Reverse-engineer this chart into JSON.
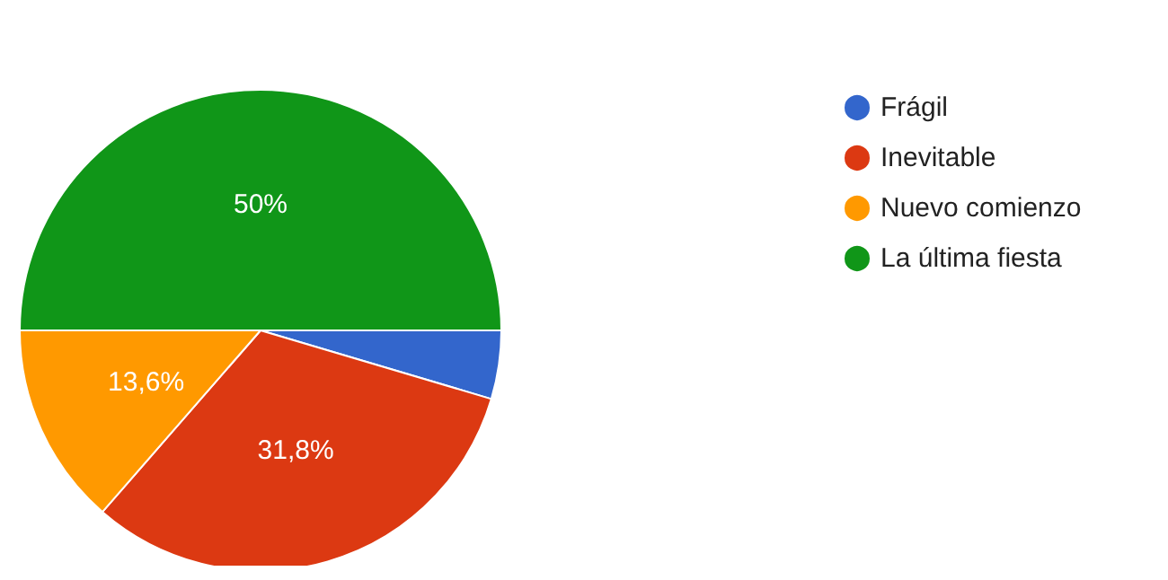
{
  "chart_data": {
    "type": "pie",
    "categories": [
      "Frágil",
      "Inevitable",
      "Nuevo comienzo",
      "La última fiesta"
    ],
    "values": [
      4.6,
      31.8,
      13.6,
      50
    ],
    "colors": [
      "#3366cc",
      "#dc3912",
      "#ff9900",
      "#109618"
    ],
    "value_labels": [
      null,
      "31,8%",
      "13,6%",
      "50%"
    ],
    "legend": "right"
  }
}
